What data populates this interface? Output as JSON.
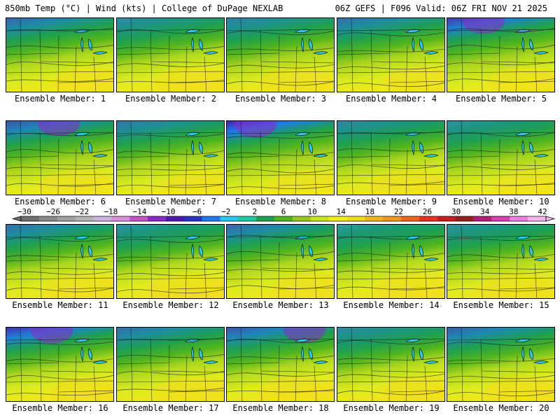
{
  "header": {
    "left": "850mb Temp (°C) | Wind (kts) | College of DuPage NEXLAB",
    "right": "06Z GEFS | F096 Valid: 06Z FRI NOV 21 2025"
  },
  "member_label_prefix": "Ensemble Member: ",
  "members": [
    {
      "id": "1",
      "cold": 0.55,
      "warm": 0.45
    },
    {
      "id": "2",
      "cold": 0.35,
      "warm": 0.55
    },
    {
      "id": "3",
      "cold": 0.4,
      "warm": 0.4
    },
    {
      "id": "4",
      "cold": 0.5,
      "warm": 0.45
    },
    {
      "id": "5",
      "cold": 0.8,
      "warm": 0.35
    },
    {
      "id": "6",
      "cold": 0.65,
      "warm": 0.35
    },
    {
      "id": "7",
      "cold": 0.45,
      "warm": 0.4
    },
    {
      "id": "8",
      "cold": 0.95,
      "warm": 0.3
    },
    {
      "id": "9",
      "cold": 0.35,
      "warm": 0.5
    },
    {
      "id": "10",
      "cold": 0.3,
      "warm": 0.35
    },
    {
      "id": "11",
      "cold": 0.5,
      "warm": 0.5
    },
    {
      "id": "12",
      "cold": 0.3,
      "warm": 0.6
    },
    {
      "id": "13",
      "cold": 0.55,
      "warm": 0.5
    },
    {
      "id": "14",
      "cold": 0.25,
      "warm": 0.55
    },
    {
      "id": "15",
      "cold": 0.3,
      "warm": 0.5
    },
    {
      "id": "16",
      "cold": 0.85,
      "warm": 0.55
    },
    {
      "id": "17",
      "cold": 0.5,
      "warm": 0.5
    },
    {
      "id": "18",
      "cold": 0.65,
      "warm": 0.55
    },
    {
      "id": "19",
      "cold": 0.35,
      "warm": 0.55
    },
    {
      "id": "20",
      "cold": 0.6,
      "warm": 0.55
    }
  ],
  "colorbar": {
    "labels": [
      "−30",
      "−26",
      "−22",
      "−18",
      "−14",
      "−10",
      "−6",
      "−2",
      "2",
      "6",
      "10",
      "14",
      "18",
      "22",
      "26",
      "30",
      "34",
      "38",
      "42"
    ],
    "colors": [
      "#6e6e6e",
      "#8a8a8a",
      "#a0a0a0",
      "#b4b4b4",
      "#c8b4dc",
      "#dc8cdc",
      "#c850c8",
      "#8c28c8",
      "#5014b4",
      "#2832c8",
      "#1e78f0",
      "#28c8f0",
      "#1ec8a0",
      "#1ea050",
      "#50b41e",
      "#96c81e",
      "#c8e61e",
      "#f0f01e",
      "#f0dc1e",
      "#f0b41e",
      "#f0961e",
      "#f0641e",
      "#e6321e",
      "#c81e1e",
      "#961e1e",
      "#b41e78",
      "#dc3cb4",
      "#f07ce6",
      "#f8b4f0"
    ]
  }
}
